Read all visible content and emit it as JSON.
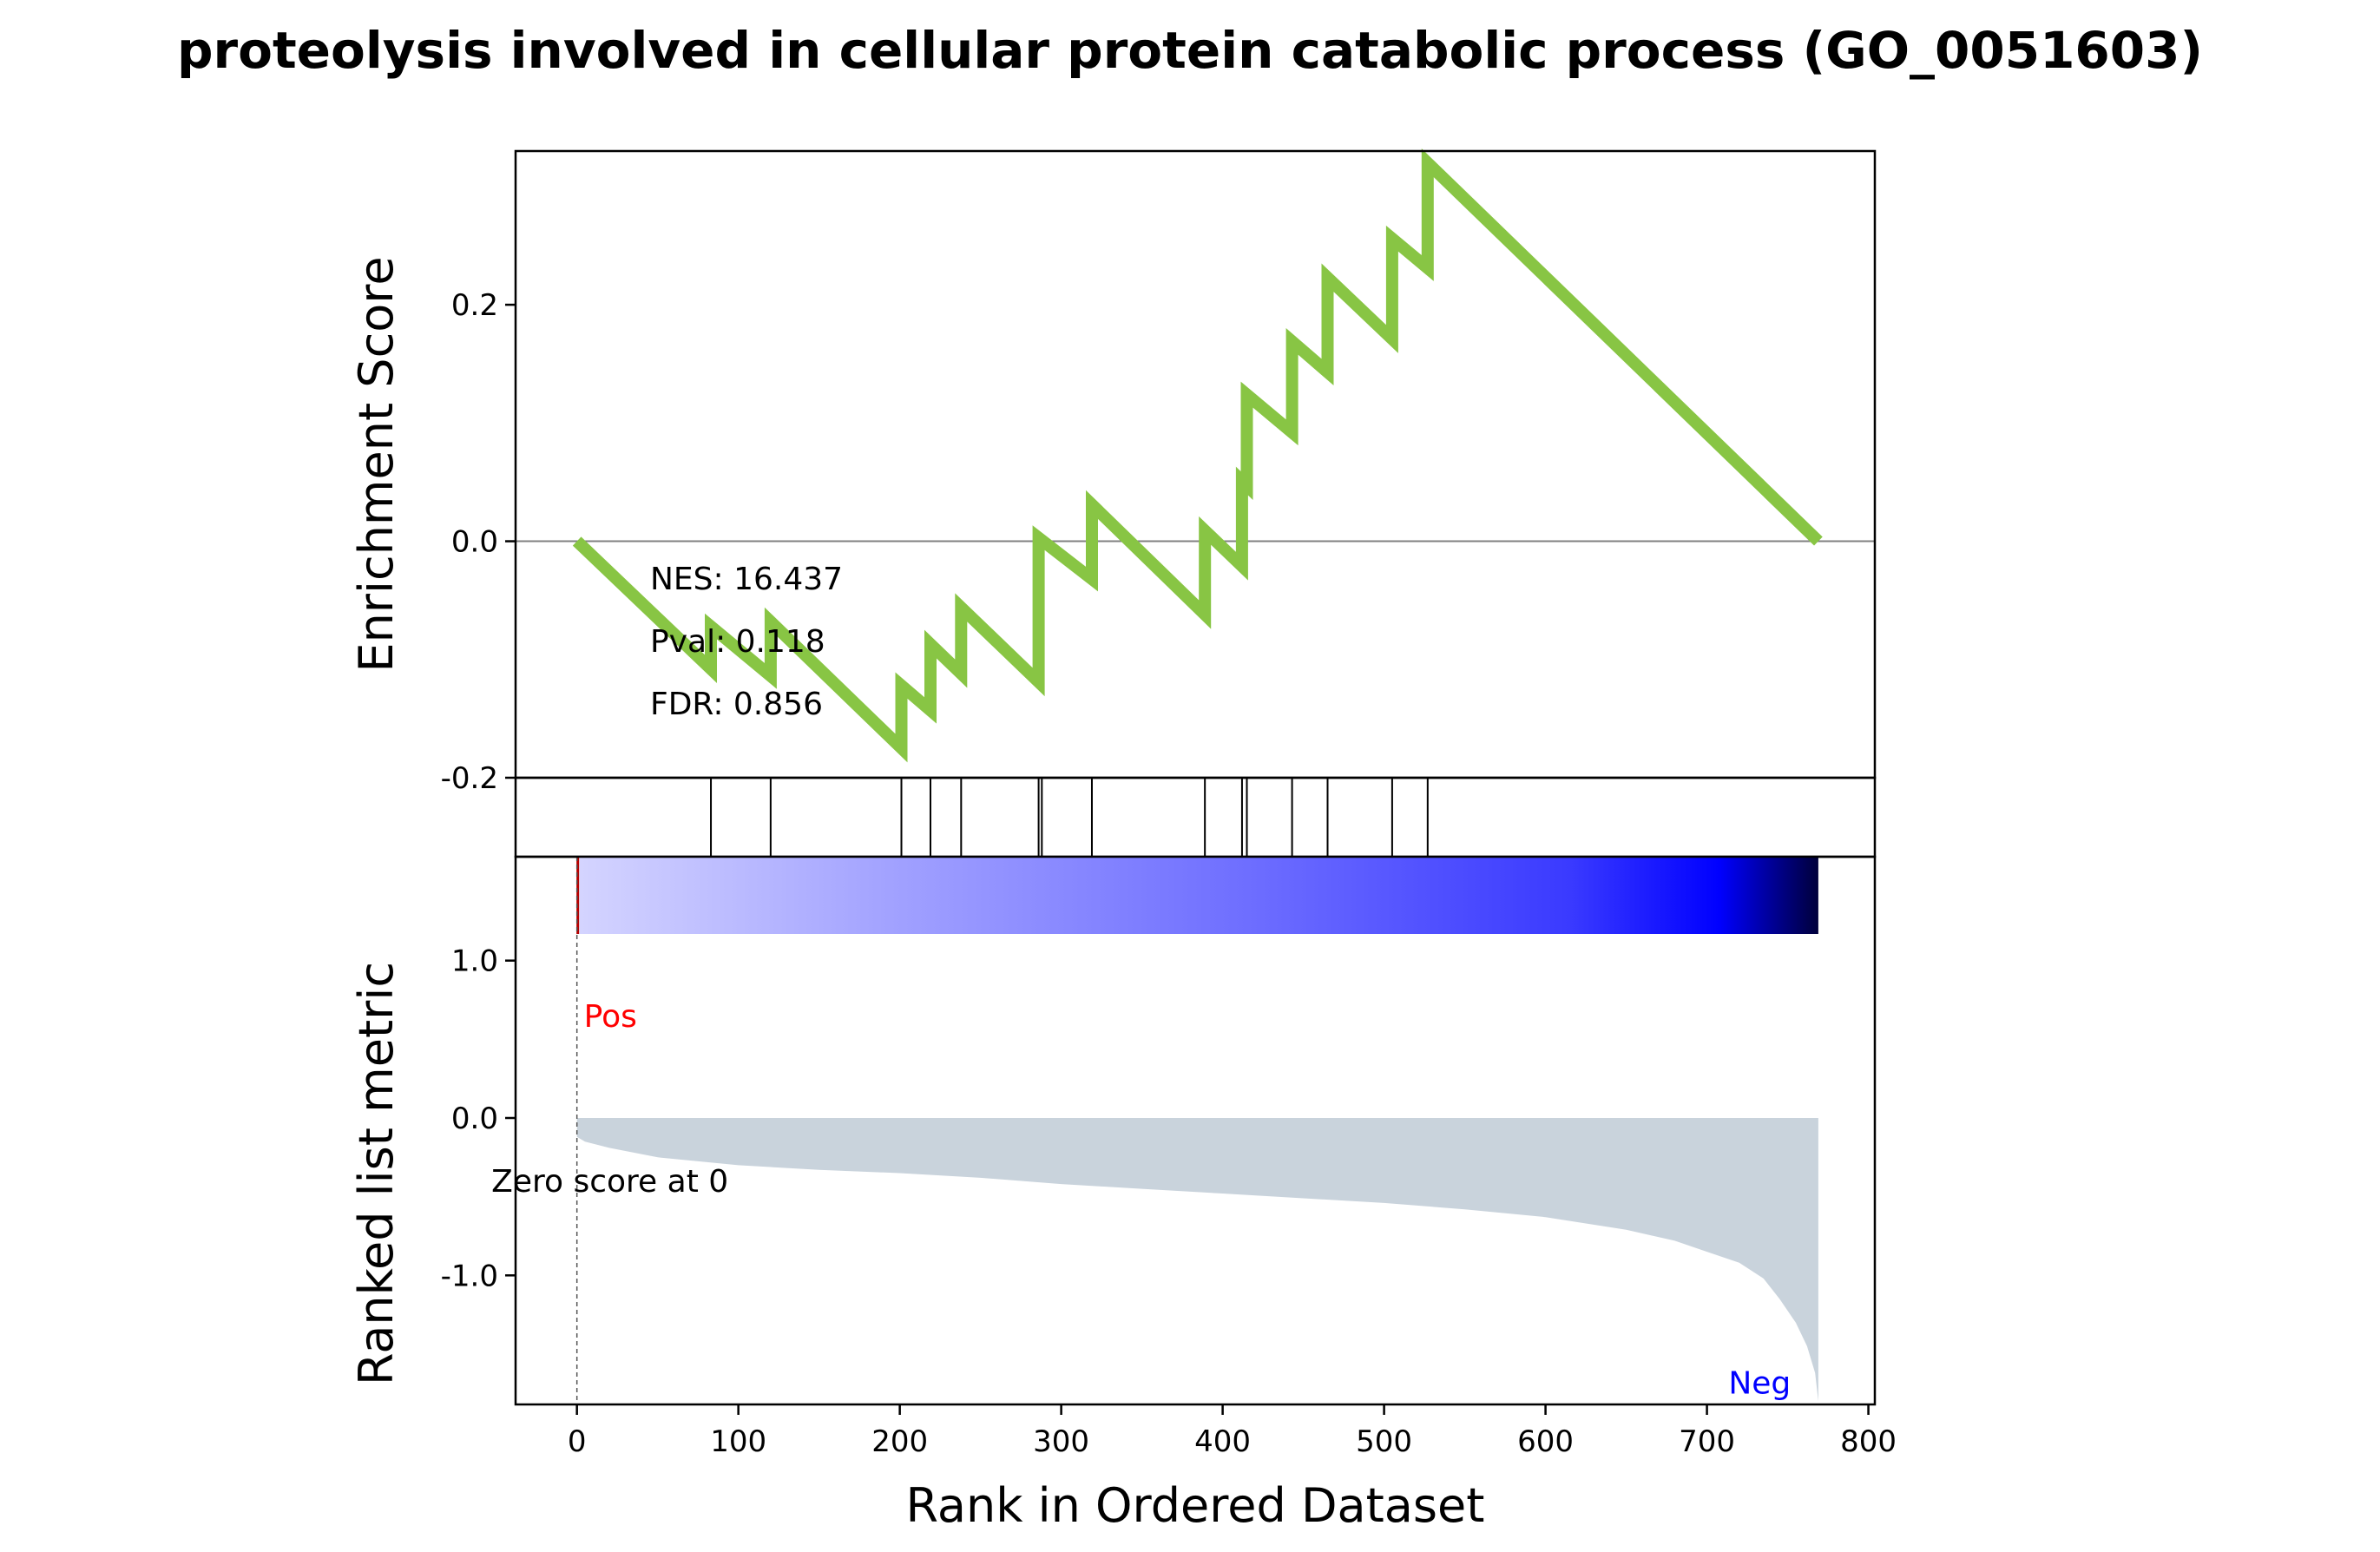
{
  "chart_data": {
    "type": "line",
    "title": "proteolysis involved in cellular protein catabolic process (GO_0051603)",
    "n_genes": 769,
    "colors": {
      "es_line": "#88c544",
      "hit_line": "#000000",
      "zero_line": "#808080",
      "metric_fill": "#c9d3dc",
      "pos_label": "#ff0000",
      "neg_label": "#0000ff",
      "pos_tick": "#b40000"
    },
    "enrichment": {
      "ylabel": "Enrichment Score",
      "ylim": [
        -0.2,
        0.33
      ],
      "yticks": [
        {
          "value": 0.2,
          "label": "0.2"
        },
        {
          "value": 0.0,
          "label": "0.0"
        },
        {
          "value": -0.2,
          "label": "-0.2"
        }
      ],
      "points": [
        [
          0,
          0.0
        ],
        [
          83,
          -0.108
        ],
        [
          83,
          -0.072
        ],
        [
          120,
          -0.114
        ],
        [
          120,
          -0.068
        ],
        [
          201,
          -0.175
        ],
        [
          201,
          -0.122
        ],
        [
          219,
          -0.143
        ],
        [
          219,
          -0.087
        ],
        [
          238,
          -0.112
        ],
        [
          238,
          -0.056
        ],
        [
          286,
          -0.119
        ],
        [
          286,
          0.003
        ],
        [
          319,
          -0.032
        ],
        [
          319,
          0.031
        ],
        [
          389,
          -0.062
        ],
        [
          389,
          0.009
        ],
        [
          412,
          -0.021
        ],
        [
          412,
          0.051
        ],
        [
          415,
          0.047
        ],
        [
          415,
          0.124
        ],
        [
          443,
          0.092
        ],
        [
          443,
          0.169
        ],
        [
          465,
          0.143
        ],
        [
          465,
          0.223
        ],
        [
          505,
          0.171
        ],
        [
          505,
          0.256
        ],
        [
          527,
          0.231
        ],
        [
          527,
          0.32
        ],
        [
          769,
          0.0
        ]
      ],
      "stats": {
        "nes": "NES: 16.437",
        "pval": "Pval: 0.118",
        "fdr": "FDR: 0.856"
      }
    },
    "hits": [
      83,
      120,
      201,
      219,
      238,
      286,
      288,
      319,
      389,
      412,
      415,
      443,
      465,
      505,
      527
    ],
    "metric": {
      "ylabel": "Ranked list metric",
      "ylim": [
        -1.82,
        1.66
      ],
      "yticks": [
        {
          "value": 1.0,
          "label": "1.0"
        },
        {
          "value": 0.0,
          "label": "0.0"
        },
        {
          "value": -1.0,
          "label": "-1.0"
        }
      ],
      "curve": [
        [
          0,
          -0.12
        ],
        [
          5,
          -0.15
        ],
        [
          20,
          -0.19
        ],
        [
          50,
          -0.25
        ],
        [
          100,
          -0.3
        ],
        [
          150,
          -0.33
        ],
        [
          200,
          -0.35
        ],
        [
          250,
          -0.38
        ],
        [
          300,
          -0.42
        ],
        [
          350,
          -0.45
        ],
        [
          400,
          -0.48
        ],
        [
          450,
          -0.51
        ],
        [
          500,
          -0.54
        ],
        [
          550,
          -0.58
        ],
        [
          600,
          -0.63
        ],
        [
          650,
          -0.71
        ],
        [
          680,
          -0.78
        ],
        [
          700,
          -0.85
        ],
        [
          720,
          -0.92
        ],
        [
          735,
          -1.02
        ],
        [
          745,
          -1.15
        ],
        [
          755,
          -1.3
        ],
        [
          762,
          -1.45
        ],
        [
          767,
          -1.62
        ],
        [
          769,
          -1.8
        ]
      ],
      "pos_label": "Pos",
      "neg_label": "Neg",
      "zero_text": "Zero score at 0",
      "zero_rank": 0
    },
    "xaxis": {
      "xlabel": "Rank in Ordered Dataset",
      "xlim": [
        -38,
        804
      ],
      "xticks": [
        0,
        100,
        200,
        300,
        400,
        500,
        600,
        700,
        800
      ]
    }
  }
}
